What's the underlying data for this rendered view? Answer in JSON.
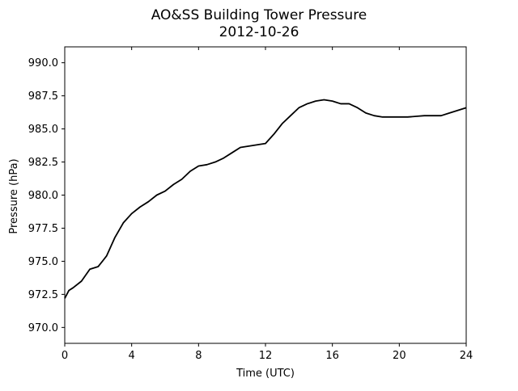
{
  "chart_data": {
    "type": "line",
    "title": "AO&SS Building Tower Pressure",
    "subtitle": "2012-10-26",
    "xlabel": "Time (UTC)",
    "ylabel": "Pressure (hPa)",
    "xlim": [
      0,
      24
    ],
    "ylim": [
      968.8,
      991.2
    ],
    "xticks": [
      0,
      4,
      8,
      12,
      16,
      20,
      24
    ],
    "xtick_labels": [
      "0",
      "4",
      "8",
      "12",
      "16",
      "20",
      "24"
    ],
    "yticks": [
      970.0,
      972.5,
      975.0,
      977.5,
      980.0,
      982.5,
      985.0,
      987.5,
      990.0
    ],
    "ytick_labels": [
      "970.0",
      "972.5",
      "975.0",
      "977.5",
      "980.0",
      "982.5",
      "985.0",
      "987.5",
      "990.0"
    ],
    "grid": false,
    "line_color": "#000000",
    "series": [
      {
        "x": [
          0,
          0.25,
          0.5,
          1,
          1.5,
          2,
          2.5,
          3,
          3.5,
          4,
          4.5,
          5,
          5.5,
          6,
          6.5,
          7,
          7.5,
          8,
          8.5,
          9,
          9.5,
          10,
          10.5,
          11,
          11.5,
          12,
          12.5,
          13,
          13.5,
          14,
          14.5,
          15,
          15.5,
          16,
          16.5,
          17,
          17.5,
          18,
          18.5,
          19,
          19.5,
          20,
          20.5,
          21,
          21.5,
          22,
          22.5,
          23,
          23.5,
          24
        ],
        "y": [
          972.2,
          972.8,
          973.0,
          973.5,
          974.4,
          974.6,
          975.4,
          976.8,
          977.9,
          978.6,
          979.1,
          979.5,
          980.0,
          980.3,
          980.8,
          981.2,
          981.8,
          982.2,
          982.3,
          982.5,
          982.8,
          983.2,
          983.6,
          983.7,
          983.8,
          983.9,
          984.6,
          985.4,
          986.0,
          986.6,
          986.9,
          987.1,
          987.2,
          987.1,
          986.9,
          986.9,
          986.6,
          986.2,
          986.0,
          985.9,
          985.9,
          985.9,
          985.9,
          985.95,
          986.0,
          986.0,
          986.0,
          986.2,
          986.4,
          986.6
        ]
      }
    ]
  }
}
